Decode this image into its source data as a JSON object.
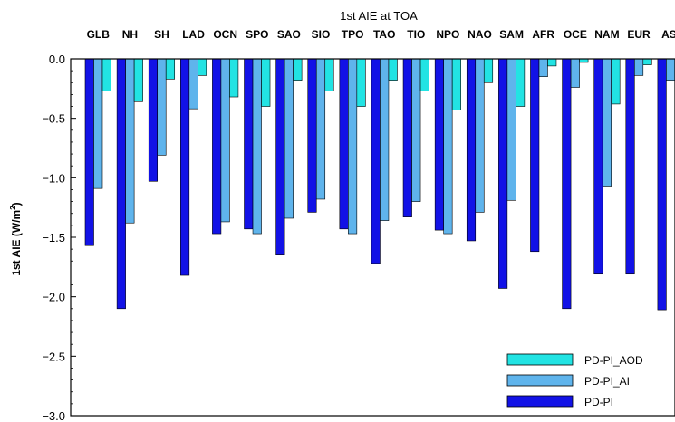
{
  "chart_data": {
    "type": "bar",
    "title": "1st AIE at TOA",
    "ylabel_main": "1st AIE (W/m",
    "ylabel_sup": "2",
    "ylabel_end": ")",
    "ylim": [
      -3.0,
      0.0
    ],
    "yticks": [
      "0.0",
      "-0.5",
      "-1.0",
      "-1.5",
      "-2.0",
      "-2.5",
      "-3.0"
    ],
    "categories": [
      "GLB",
      "NH",
      "SH",
      "LAD",
      "OCN",
      "SPO",
      "SAO",
      "SIO",
      "TPO",
      "TAO",
      "TIO",
      "NPO",
      "NAO",
      "SAM",
      "AFR",
      "OCE",
      "NAM",
      "EUR",
      "ASI"
    ],
    "series": [
      {
        "name": "PD-PI",
        "color": "#1212e6",
        "values": [
          -1.57,
          -2.1,
          -1.03,
          -1.82,
          -1.47,
          -1.43,
          -1.65,
          -1.29,
          -1.43,
          -1.72,
          -1.33,
          -1.44,
          -1.53,
          -1.93,
          -1.62,
          -2.1,
          -1.81,
          -1.81,
          -2.11
        ]
      },
      {
        "name": "PD-PI_AI",
        "color": "#5fb4ec",
        "values": [
          -1.09,
          -1.38,
          -0.81,
          -0.42,
          -1.37,
          -1.47,
          -1.34,
          -1.18,
          -1.47,
          -1.36,
          -1.2,
          -1.47,
          -1.29,
          -1.19,
          -0.15,
          -0.24,
          -1.07,
          -0.14,
          -0.18
        ]
      },
      {
        "name": "PD-PI_AOD",
        "color": "#22e3e3",
        "values": [
          -0.27,
          -0.36,
          -0.17,
          -0.14,
          -0.32,
          -0.4,
          -0.18,
          -0.27,
          -0.4,
          -0.18,
          -0.27,
          -0.43,
          -0.2,
          -0.4,
          -0.06,
          -0.03,
          -0.38,
          -0.05,
          -0.06
        ]
      }
    ],
    "legend": {
      "placement": "bottom-right",
      "order": [
        "PD-PI_AOD",
        "PD-PI_AI",
        "PD-PI"
      ]
    }
  }
}
